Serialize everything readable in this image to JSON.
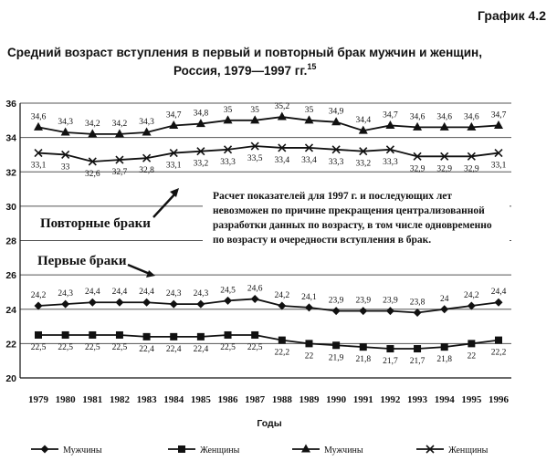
{
  "page": {
    "label": "График 4.2",
    "title_line1": "Средний возраст вступления в первый и повторный брак мужчин и женщин,",
    "title_line2": "Россия, 1979—1997 гг.",
    "title_footnote": "15",
    "note_lines": [
      "Расчет показателей для 1997 г. и последующих лет",
      "невозможен по причине прекращения централизованной",
      "разработки данных по возрасту, в том числе одновременно",
      "по возрасту и очередности вступления в брак."
    ],
    "annot_repeat": "Повторные браки",
    "annot_first": "Первые браки"
  },
  "chart_data": {
    "type": "line",
    "title": "Средний возраст вступления в первый и повторный брак мужчин и женщин, Россия, 1979—1997 гг.",
    "xlabel": "Годы",
    "ylabel": "",
    "categories": [
      "1979",
      "1980",
      "1981",
      "1982",
      "1983",
      "1984",
      "1985",
      "1986",
      "1987",
      "1988",
      "1989",
      "1990",
      "1991",
      "1992",
      "1993",
      "1994",
      "1995",
      "1996"
    ],
    "ylim": [
      20,
      36
    ],
    "yticks": [
      20,
      22,
      24,
      26,
      28,
      30,
      32,
      34,
      36
    ],
    "grid": "horizontal",
    "legend_position": "bottom",
    "series": [
      {
        "name": "Мужчины",
        "group": "Первые браки",
        "marker": "diamond",
        "values": [
          24.2,
          24.3,
          24.4,
          24.4,
          24.4,
          24.3,
          24.3,
          24.5,
          24.6,
          24.2,
          24.1,
          23.9,
          23.9,
          23.9,
          23.8,
          24,
          24.2,
          24.4
        ],
        "label_position": "above"
      },
      {
        "name": "Женщины",
        "group": "Первые браки",
        "marker": "square",
        "values": [
          22.5,
          22.5,
          22.5,
          22.5,
          22.4,
          22.4,
          22.4,
          22.5,
          22.5,
          22.2,
          22,
          21.9,
          21.8,
          21.7,
          21.7,
          21.8,
          22,
          22.2
        ],
        "label_position": "below"
      },
      {
        "name": "Мужчины",
        "group": "Повторные браки",
        "marker": "triangle",
        "values": [
          34.6,
          34.3,
          34.2,
          34.2,
          34.3,
          34.7,
          34.8,
          35,
          35,
          35.2,
          35,
          34.9,
          34.4,
          34.7,
          34.6,
          34.6,
          34.6,
          34.7
        ],
        "label_position": "above"
      },
      {
        "name": "Женщины",
        "group": "Повторные браки",
        "marker": "cross",
        "values": [
          33.1,
          33,
          32.6,
          32.7,
          32.8,
          33.1,
          33.2,
          33.3,
          33.5,
          33.4,
          33.4,
          33.3,
          33.2,
          33.3,
          32.9,
          32.9,
          32.9,
          33.1
        ],
        "label_position": "below"
      }
    ]
  }
}
